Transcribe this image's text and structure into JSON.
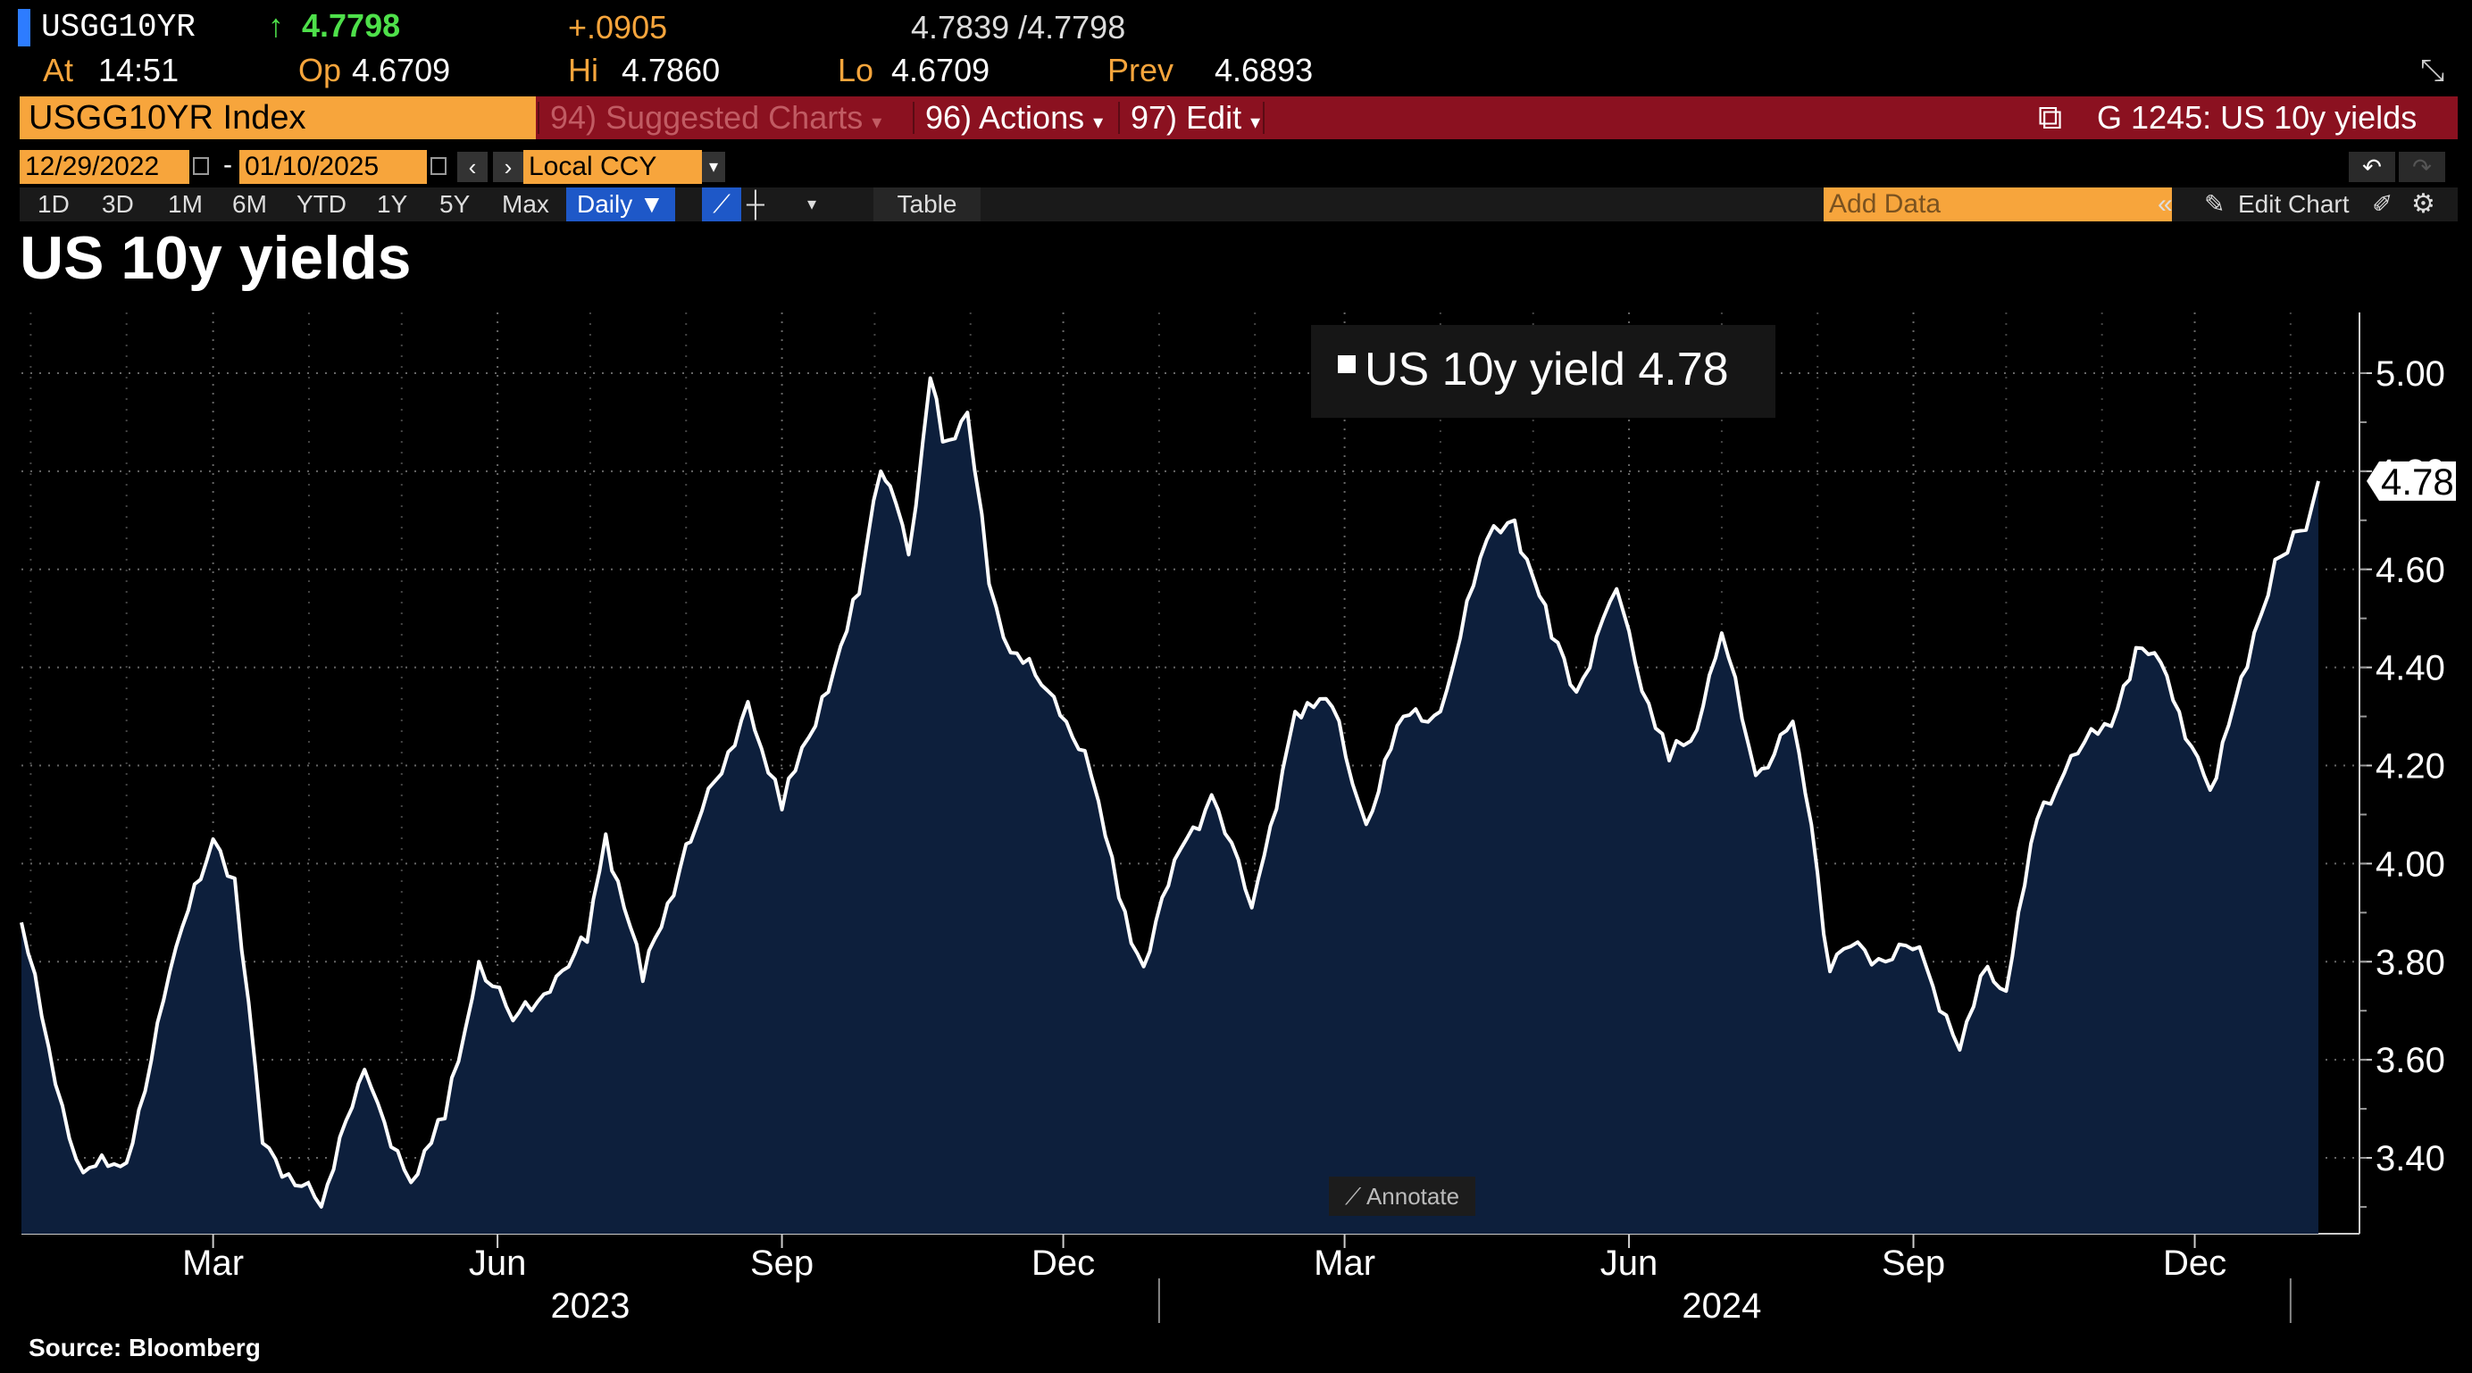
{
  "header": {
    "ticker": "USGG10YR",
    "last_price": "4.7798",
    "change": "+.0905",
    "bid_ask": "4.7839 /4.7798",
    "at_label": "At",
    "time": "14:51",
    "open_label": "Op",
    "open": "4.6709",
    "high_label": "Hi",
    "high": "4.7860",
    "low_label": "Lo",
    "low": "4.6709",
    "prev_label": "Prev",
    "prev": "4.6893"
  },
  "toolbar": {
    "security": "USGG10YR Index",
    "suggested": "94) Suggested Charts",
    "actions": "96) Actions",
    "edit": "97) Edit",
    "chart_name": "G 1245: US 10y yields"
  },
  "dates": {
    "start": "12/29/2022",
    "end": "01/10/2025",
    "dash": "-",
    "currency": "Local CCY"
  },
  "periods": [
    "1D",
    "3D",
    "1M",
    "6M",
    "YTD",
    "1Y",
    "5Y",
    "Max"
  ],
  "frequency": "Daily",
  "table_label": "Table",
  "add_data_placeholder": "Add Data",
  "edit_chart_label": "Edit Chart",
  "annotate_label": "Annotate",
  "source": "Source:  Bloomberg",
  "colors": {
    "accent_orange": "#f7a53c",
    "bar_red": "#8b1120",
    "fill_navy": "#0d1f3c",
    "up_green": "#4ee04a"
  },
  "chart_data": {
    "type": "area",
    "title": "US 10y yields",
    "series": [
      {
        "name": "US 10y yield",
        "last_value": "4.78",
        "x": [
          "2022-12-29",
          "2023-01-09",
          "2023-01-18",
          "2023-02-01",
          "2023-02-15",
          "2023-03-01",
          "2023-03-08",
          "2023-03-17",
          "2023-04-05",
          "2023-04-19",
          "2023-05-04",
          "2023-05-15",
          "2023-05-26",
          "2023-06-06",
          "2023-06-20",
          "2023-06-30",
          "2023-07-06",
          "2023-07-18",
          "2023-08-01",
          "2023-08-04",
          "2023-08-21",
          "2023-09-01",
          "2023-09-14",
          "2023-09-26",
          "2023-10-03",
          "2023-10-06",
          "2023-10-12",
          "2023-10-19",
          "2023-10-23",
          "2023-10-31",
          "2023-11-07",
          "2023-11-14",
          "2023-11-28",
          "2023-12-08",
          "2023-12-19",
          "2023-12-27",
          "2024-01-08",
          "2024-01-18",
          "2024-01-31",
          "2024-02-14",
          "2024-02-26",
          "2024-03-08",
          "2024-03-20",
          "2024-04-01",
          "2024-04-16",
          "2024-04-25",
          "2024-05-07",
          "2024-05-15",
          "2024-05-28",
          "2024-06-03",
          "2024-06-14",
          "2024-06-21",
          "2024-07-01",
          "2024-07-12",
          "2024-07-24",
          "2024-08-01",
          "2024-08-05",
          "2024-08-14",
          "2024-08-23",
          "2024-09-03",
          "2024-09-16",
          "2024-09-25",
          "2024-10-01",
          "2024-10-11",
          "2024-10-22",
          "2024-11-04",
          "2024-11-12",
          "2024-11-20",
          "2024-12-06",
          "2024-12-18",
          "2024-12-27",
          "2025-01-06",
          "2025-01-10"
        ],
        "values": [
          3.88,
          3.55,
          3.37,
          3.39,
          3.78,
          4.05,
          3.97,
          3.43,
          3.3,
          3.58,
          3.35,
          3.48,
          3.8,
          3.68,
          3.77,
          3.84,
          4.06,
          3.76,
          4.04,
          4.07,
          4.33,
          4.11,
          4.34,
          4.55,
          4.8,
          4.77,
          4.63,
          4.99,
          4.86,
          4.92,
          4.57,
          4.43,
          4.34,
          4.23,
          3.93,
          3.79,
          4.03,
          4.14,
          3.91,
          4.31,
          4.32,
          4.08,
          4.3,
          4.31,
          4.66,
          4.7,
          4.46,
          4.35,
          4.56,
          4.41,
          4.21,
          4.25,
          4.47,
          4.18,
          4.29,
          3.98,
          3.78,
          3.84,
          3.8,
          3.83,
          3.62,
          3.79,
          3.74,
          4.09,
          4.22,
          4.28,
          4.44,
          4.41,
          4.15,
          4.4,
          4.62,
          4.68,
          4.78
        ]
      }
    ],
    "ylim": [
      3.25,
      5.1
    ],
    "yticks": [
      "3.40",
      "3.60",
      "3.80",
      "4.00",
      "4.20",
      "4.40",
      "4.60",
      "4.80",
      "5.00"
    ],
    "month_ticks": [
      {
        "date": "2023-03-01",
        "label": "Mar"
      },
      {
        "date": "2023-06-01",
        "label": "Jun"
      },
      {
        "date": "2023-09-01",
        "label": "Sep"
      },
      {
        "date": "2023-12-01",
        "label": "Dec"
      },
      {
        "date": "2024-03-01",
        "label": "Mar"
      },
      {
        "date": "2024-06-01",
        "label": "Jun"
      },
      {
        "date": "2024-09-01",
        "label": "Sep"
      },
      {
        "date": "2024-12-01",
        "label": "Dec"
      }
    ],
    "year_labels": [
      {
        "date": "2023-07-01",
        "label": "2023"
      },
      {
        "date": "2024-07-01",
        "label": "2024"
      }
    ],
    "xlim": [
      "2022-12-29",
      "2025-01-10"
    ],
    "grid": true,
    "legend": "top-center"
  }
}
